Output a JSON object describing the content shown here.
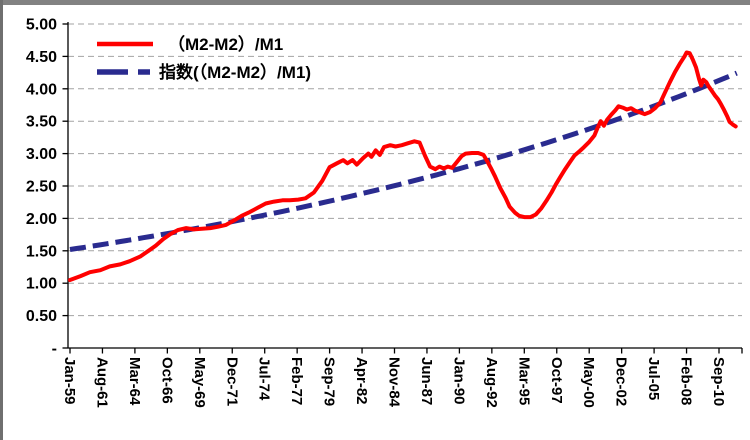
{
  "frame": {
    "background": "#ffffff",
    "top_edge_color": "#828282",
    "left_edge_color": "#6f6f6f"
  },
  "chart_data": {
    "type": "line",
    "title": "",
    "grid": {
      "visible": true,
      "style": "dashed",
      "color": "#a3a3a3"
    },
    "axis_color": "#000000",
    "legend": {
      "position": "top-left",
      "entries": [
        "（M2-M2）/M1",
        "指数(（M2-M2）/M1)"
      ]
    },
    "x_axis": {
      "unit": "month",
      "start_label": "Jan-59",
      "tick_interval_months": 31,
      "label_rotation_deg": 90,
      "domain_months": [
        0,
        642
      ],
      "tick_labels": [
        "Jan-59",
        "Aug-61",
        "Mar-64",
        "Oct-66",
        "May-69",
        "Dec-71",
        "Jul-74",
        "Feb-77",
        "Sep-79",
        "Apr-82",
        "Nov-84",
        "Jun-87",
        "Jan-90",
        "Aug-92",
        "Mar-95",
        "Oct-97",
        "May-00",
        "Dec-02",
        "Jul-05",
        "Feb-08",
        "Sep-10"
      ]
    },
    "y_axis": {
      "min": 0,
      "max": 5,
      "step": 0.5,
      "tick_labels": [
        "-",
        "0.50",
        "1.00",
        "1.50",
        "2.00",
        "2.50",
        "3.00",
        "3.50",
        "4.00",
        "4.50",
        "5.00"
      ]
    },
    "series": [
      {
        "name": "（M2-M2）/M1",
        "type": "line",
        "style": "solid",
        "color": "#ff0000",
        "points": [
          [
            0,
            1.05
          ],
          [
            10,
            1.11
          ],
          [
            19,
            1.17
          ],
          [
            29,
            1.2
          ],
          [
            38,
            1.26
          ],
          [
            48,
            1.29
          ],
          [
            57,
            1.34
          ],
          [
            67,
            1.41
          ],
          [
            75,
            1.5
          ],
          [
            82,
            1.58
          ],
          [
            89,
            1.68
          ],
          [
            96,
            1.76
          ],
          [
            103,
            1.82
          ],
          [
            111,
            1.85
          ],
          [
            118,
            1.83
          ],
          [
            126,
            1.84
          ],
          [
            134,
            1.85
          ],
          [
            141,
            1.87
          ],
          [
            149,
            1.9
          ],
          [
            157,
            1.97
          ],
          [
            164,
            2.04
          ],
          [
            172,
            2.1
          ],
          [
            180,
            2.17
          ],
          [
            187,
            2.23
          ],
          [
            195,
            2.26
          ],
          [
            203,
            2.28
          ],
          [
            210,
            2.28
          ],
          [
            218,
            2.29
          ],
          [
            225,
            2.31
          ],
          [
            233,
            2.4
          ],
          [
            241,
            2.58
          ],
          [
            248,
            2.79
          ],
          [
            255,
            2.85
          ],
          [
            261,
            2.9
          ],
          [
            265,
            2.85
          ],
          [
            270,
            2.9
          ],
          [
            274,
            2.83
          ],
          [
            280,
            2.93
          ],
          [
            285,
            3.0
          ],
          [
            288,
            2.95
          ],
          [
            292,
            3.05
          ],
          [
            296,
            2.98
          ],
          [
            300,
            3.1
          ],
          [
            306,
            3.13
          ],
          [
            311,
            3.11
          ],
          [
            317,
            3.13
          ],
          [
            323,
            3.16
          ],
          [
            329,
            3.19
          ],
          [
            334,
            3.17
          ],
          [
            339,
            2.97
          ],
          [
            344,
            2.8
          ],
          [
            349,
            2.76
          ],
          [
            353,
            2.8
          ],
          [
            357,
            2.77
          ],
          [
            361,
            2.8
          ],
          [
            365,
            2.78
          ],
          [
            369,
            2.86
          ],
          [
            374,
            2.96
          ],
          [
            378,
            3.0
          ],
          [
            384,
            3.01
          ],
          [
            390,
            3.01
          ],
          [
            395,
            2.98
          ],
          [
            398,
            2.9
          ],
          [
            402,
            2.78
          ],
          [
            406,
            2.65
          ],
          [
            411,
            2.47
          ],
          [
            416,
            2.32
          ],
          [
            420,
            2.18
          ],
          [
            425,
            2.09
          ],
          [
            429,
            2.04
          ],
          [
            434,
            2.02
          ],
          [
            440,
            2.02
          ],
          [
            445,
            2.06
          ],
          [
            450,
            2.15
          ],
          [
            455,
            2.27
          ],
          [
            460,
            2.4
          ],
          [
            464,
            2.52
          ],
          [
            468,
            2.63
          ],
          [
            473,
            2.76
          ],
          [
            478,
            2.88
          ],
          [
            482,
            2.97
          ],
          [
            487,
            3.04
          ],
          [
            491,
            3.1
          ],
          [
            496,
            3.18
          ],
          [
            501,
            3.28
          ],
          [
            504,
            3.4
          ],
          [
            507,
            3.5
          ],
          [
            510,
            3.43
          ],
          [
            513,
            3.52
          ],
          [
            517,
            3.6
          ],
          [
            521,
            3.67
          ],
          [
            524,
            3.73
          ],
          [
            528,
            3.71
          ],
          [
            532,
            3.68
          ],
          [
            536,
            3.7
          ],
          [
            540,
            3.66
          ],
          [
            544,
            3.64
          ],
          [
            549,
            3.61
          ],
          [
            554,
            3.64
          ],
          [
            559,
            3.7
          ],
          [
            564,
            3.79
          ],
          [
            568,
            3.93
          ],
          [
            573,
            4.1
          ],
          [
            578,
            4.26
          ],
          [
            583,
            4.4
          ],
          [
            587,
            4.5
          ],
          [
            589,
            4.56
          ],
          [
            592,
            4.55
          ],
          [
            595,
            4.45
          ],
          [
            598,
            4.33
          ],
          [
            601,
            4.15
          ],
          [
            603,
            4.05
          ],
          [
            605,
            4.14
          ],
          [
            608,
            4.1
          ],
          [
            610,
            4.04
          ],
          [
            613,
            3.97
          ],
          [
            616,
            3.9
          ],
          [
            619,
            3.84
          ],
          [
            622,
            3.76
          ],
          [
            625,
            3.67
          ],
          [
            628,
            3.57
          ],
          [
            630,
            3.49
          ],
          [
            633,
            3.45
          ],
          [
            636,
            3.42
          ]
        ]
      },
      {
        "name": "指数(（M2-M2）/M1)",
        "type": "trendline-exponential",
        "style": "dashed",
        "color": "#2a2b8f",
        "start_month": 0,
        "end_month": 641,
        "start_value": 1.52,
        "end_value": 4.27
      }
    ]
  }
}
